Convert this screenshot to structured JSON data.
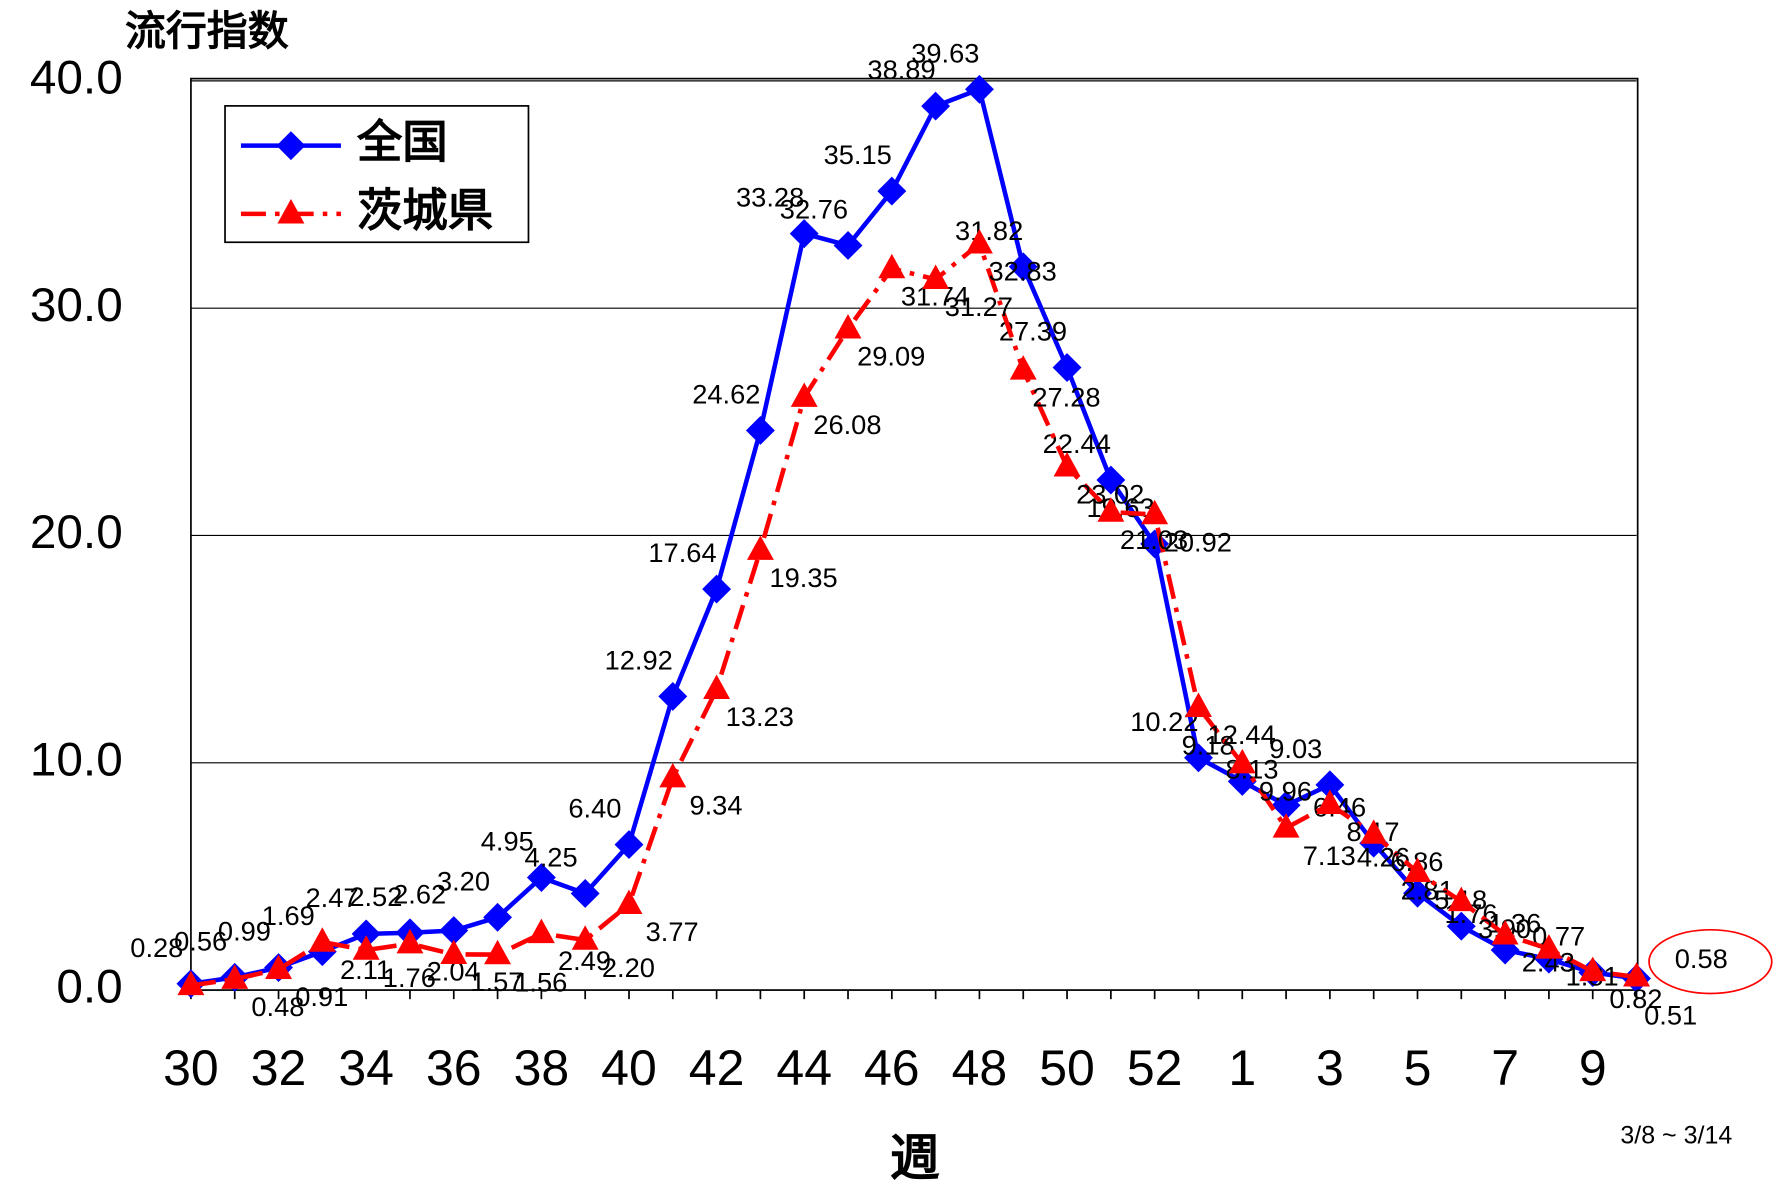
{
  "chart_data": {
    "type": "line",
    "y_label": "流行指数",
    "x_label": "週",
    "annotation": "3/8 ~ 3/14",
    "categories": [
      "30",
      null,
      "32",
      null,
      "34",
      null,
      "36",
      null,
      "38",
      null,
      "40",
      null,
      "42",
      null,
      "44",
      null,
      "46",
      null,
      "48",
      null,
      "50",
      null,
      "52",
      null,
      "1",
      null,
      "3",
      null,
      "5",
      null,
      "7",
      null,
      "9",
      null
    ],
    "ylim": [
      0,
      40
    ],
    "yticks": [
      {
        "value": 0,
        "label": "0.0"
      },
      {
        "value": 10,
        "label": "10.0"
      },
      {
        "value": 20,
        "label": "20.0"
      },
      {
        "value": 30,
        "label": "30.0"
      },
      {
        "value": 40,
        "label": "40.0"
      }
    ],
    "grid": true,
    "legend": "upper left",
    "series": [
      {
        "name": "全国",
        "color": "#0000ff",
        "marker": "diamond",
        "dash": "solid",
        "values": [
          0.28,
          0.56,
          0.99,
          1.69,
          2.47,
          2.52,
          2.62,
          3.2,
          4.95,
          4.25,
          6.4,
          12.92,
          17.64,
          24.62,
          33.28,
          32.76,
          35.15,
          38.89,
          39.63,
          31.82,
          27.39,
          22.44,
          19.63,
          10.22,
          9.18,
          8.13,
          9.03,
          6.46,
          4.26,
          2.81,
          1.76,
          1.36,
          0.77,
          0.51
        ],
        "value_labels": [
          "0.28",
          "0.56",
          "0.99",
          "1.69",
          "2.47",
          "2.52",
          "2.62",
          "3.20",
          "4.95",
          "4.25",
          "6.40",
          "12.92",
          "17.64",
          "24.62",
          "33.28",
          "32.76",
          "35.15",
          "38.89",
          "39.63",
          "31.82",
          "27.39",
          "22.44",
          "19.63",
          "10.22",
          "9.18",
          "8.13",
          "9.03",
          "6.46",
          "4.26",
          "2.81",
          "1.76",
          "1.36",
          "0.77",
          "0.51"
        ]
      },
      {
        "name": "茨城県",
        "color": "#ff0000",
        "marker": "triangle",
        "dash": "dashdot",
        "values": [
          0.2,
          0.48,
          0.91,
          2.11,
          1.76,
          2.04,
          1.57,
          1.56,
          2.49,
          2.2,
          3.77,
          9.34,
          13.23,
          19.35,
          26.08,
          29.09,
          31.74,
          31.27,
          32.83,
          27.28,
          23.02,
          21.03,
          20.92,
          12.44,
          9.96,
          7.13,
          8.17,
          6.86,
          5.18,
          3.9,
          2.43,
          1.81,
          0.82,
          0.58
        ],
        "value_labels": [
          null,
          "0.48",
          "0.91",
          "2.11",
          "1.76",
          "2.04",
          "1.57",
          "1.56",
          "2.49",
          "2.20",
          "3.77",
          "9.34",
          "13.23",
          "19.35",
          "26.08",
          "29.09",
          "31.74",
          "31.27",
          "32.83",
          "27.28",
          "23.02",
          "21.03",
          "20.92",
          "12.44",
          "9.96",
          "7.13",
          "8.17",
          "6.86",
          "5.18",
          "3.90",
          "2.43",
          "1.81",
          "0.82",
          "0.58"
        ]
      }
    ]
  }
}
